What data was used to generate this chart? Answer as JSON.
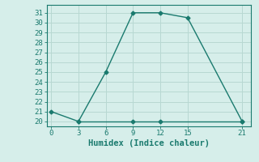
{
  "line1_x": [
    0,
    3,
    6,
    9,
    12,
    15,
    21
  ],
  "line1_y": [
    21,
    20,
    25,
    31,
    31,
    30.5,
    20
  ],
  "line2_x": [
    3,
    9,
    12,
    21
  ],
  "line2_y": [
    20,
    20,
    20,
    20
  ],
  "color": "#1a7a6e",
  "bg_color": "#d6eeea",
  "grid_color": "#b8d8d2",
  "xlabel": "Humidex (Indice chaleur)",
  "xlim": [
    -0.5,
    22
  ],
  "ylim": [
    19.5,
    31.8
  ],
  "xticks": [
    0,
    3,
    6,
    9,
    12,
    15,
    21
  ],
  "yticks": [
    20,
    21,
    22,
    23,
    24,
    25,
    26,
    27,
    28,
    29,
    30,
    31
  ],
  "xlabel_fontsize": 7.5,
  "tick_fontsize": 6.5,
  "marker": "D",
  "markersize": 2.5,
  "linewidth": 1.0
}
